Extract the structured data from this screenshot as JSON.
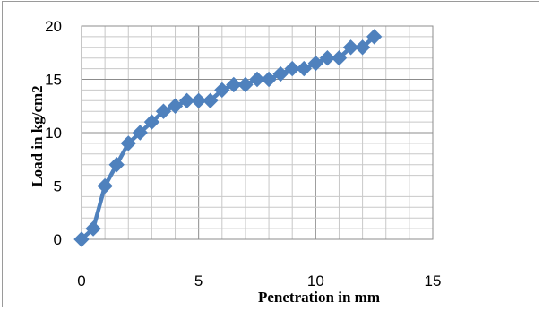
{
  "chart_data": {
    "type": "line",
    "title": "",
    "xlabel": "Penetration in mm",
    "ylabel": "Load in kg/cm2",
    "xlim": [
      0,
      15
    ],
    "ylim": [
      0,
      20
    ],
    "x_ticks": [
      0,
      5,
      10,
      15
    ],
    "y_ticks": [
      0,
      5,
      10,
      15,
      20
    ],
    "grid": "major and minor",
    "legend": "none",
    "series": [
      {
        "color": "#4f81bd",
        "marker": "diamond",
        "x": [
          0,
          0.5,
          1,
          1.5,
          2,
          2.5,
          3,
          3.5,
          4,
          4.5,
          5,
          5.5,
          6,
          6.5,
          7,
          7.5,
          8,
          8.5,
          9,
          9.5,
          10,
          10.5,
          11,
          11.5,
          12,
          12.5
        ],
        "y": [
          0,
          1,
          5,
          7,
          9,
          10,
          11,
          12,
          12.5,
          13,
          13,
          13,
          14,
          14.5,
          14.5,
          15,
          15,
          15.5,
          16,
          16,
          16.5,
          17,
          17,
          18,
          18,
          19
        ]
      }
    ]
  }
}
